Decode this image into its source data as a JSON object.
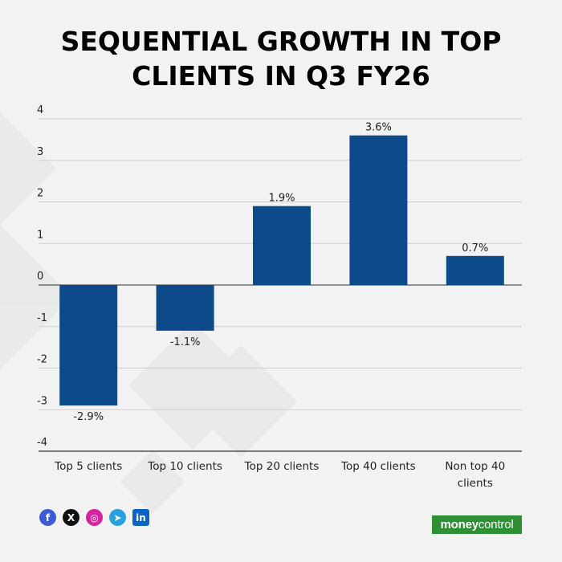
{
  "title": {
    "line1": "SEQUENTIAL GROWTH IN TOP",
    "line2": "CLIENTS IN Q3 FY26"
  },
  "chart_data": {
    "type": "bar",
    "categories": [
      "Top 5 clients",
      "Top 10 clients",
      "Top 20 clients",
      "Top 40 clients",
      "Non top 40 clients"
    ],
    "values": [
      -2.9,
      -1.1,
      1.9,
      3.6,
      0.7
    ],
    "data_labels": [
      "-2.9%",
      "-1.1%",
      "1.9%",
      "3.6%",
      "0.7%"
    ],
    "ylim": [
      -4,
      4
    ],
    "yticks": [
      4,
      3,
      2,
      1,
      0,
      -1,
      -2,
      -3,
      -4
    ],
    "grid": true,
    "bar_color": "#0d4a8a",
    "xlabel": "",
    "ylabel": ""
  },
  "footer": {
    "social_icons": [
      "facebook-icon",
      "x-icon",
      "instagram-icon",
      "telegram-icon",
      "linkedin-icon"
    ],
    "brand_bold": "money",
    "brand_light": "control",
    "brand_color": "#2f8f35"
  }
}
